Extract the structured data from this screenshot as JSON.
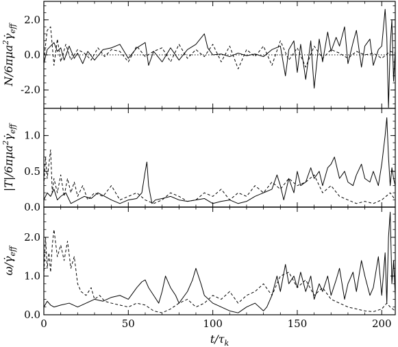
{
  "chart_data": [
    {
      "type": "line",
      "title": "",
      "ylabel": "N/6πμa²γ̇eff",
      "xlabel": "",
      "xlim": [
        0,
        208
      ],
      "ylim": [
        -3.05,
        3.05
      ],
      "yticks": [
        -2.0,
        0.0,
        2.0
      ],
      "ytick_labels": [
        "-2.0",
        "0.0",
        "2.0"
      ],
      "xtick_labels": [],
      "reference_line": {
        "y": 0.0,
        "style": "dotted"
      },
      "series": [
        {
          "style": "solid",
          "x": [
            0,
            2,
            4,
            6,
            8,
            10,
            12,
            15,
            18,
            20,
            23,
            26,
            30,
            35,
            40,
            45,
            50,
            55,
            60,
            62,
            65,
            70,
            75,
            80,
            85,
            90,
            95,
            97,
            100,
            105,
            110,
            115,
            120,
            125,
            130,
            135,
            140,
            143,
            145,
            148,
            150,
            152,
            155,
            158,
            160,
            163,
            165,
            168,
            170,
            173,
            175,
            178,
            180,
            183,
            185,
            188,
            190,
            193,
            195,
            198,
            200,
            202,
            203,
            204,
            205,
            206,
            207,
            208
          ],
          "y": [
            -0.5,
            0.3,
            0.5,
            0.7,
            0.2,
            0.4,
            -0.3,
            0.5,
            -0.2,
            0.1,
            -0.5,
            0.2,
            -0.3,
            0.3,
            0.4,
            0.6,
            -0.2,
            0.4,
            0.7,
            -0.6,
            0.2,
            -0.4,
            0.4,
            -0.3,
            0.3,
            0.6,
            1.2,
            0.4,
            0.0,
            0.05,
            -0.1,
            0.1,
            -0.05,
            0.05,
            -0.1,
            0.3,
            0.5,
            -1.2,
            0.3,
            0.8,
            -1.0,
            0.6,
            -1.4,
            0.8,
            -1.9,
            0.9,
            -0.4,
            1.3,
            0.2,
            1.0,
            0.5,
            1.6,
            -0.5,
            0.7,
            1.4,
            -0.7,
            0.5,
            0.9,
            -0.6,
            0.3,
            0.5,
            2.6,
            1.0,
            -3.0,
            0.5,
            2.0,
            -1.5,
            0.3
          ]
        },
        {
          "style": "dashed",
          "x": [
            0,
            2,
            4,
            6,
            8,
            10,
            13,
            16,
            20,
            24,
            28,
            32,
            36,
            40,
            45,
            50,
            55,
            60,
            65,
            70,
            75,
            80,
            85,
            90,
            95,
            100,
            105,
            110,
            115,
            120,
            125,
            130,
            135,
            140,
            145,
            150,
            155,
            160,
            165,
            170,
            175,
            180,
            185,
            190,
            195,
            200,
            205,
            208
          ],
          "y": [
            -0.3,
            1.4,
            1.6,
            -0.6,
            0.9,
            -0.4,
            0.6,
            -0.3,
            0.3,
            0.1,
            -0.3,
            0.4,
            -0.1,
            0.3,
            0.2,
            -0.4,
            0.5,
            -0.1,
            0.2,
            0.4,
            -0.4,
            0.6,
            -0.2,
            0.3,
            -0.1,
            0.6,
            -0.4,
            0.5,
            -0.8,
            0.3,
            -0.1,
            0.5,
            -0.6,
            0.8,
            -0.3,
            0.4,
            -0.7,
            0.5,
            -0.2,
            0.3,
            0.1,
            -0.2,
            0.2,
            0.0,
            0.1,
            -0.2,
            0.2,
            0.1
          ]
        }
      ]
    },
    {
      "type": "line",
      "title": "",
      "ylabel": "|T|/6πμa²γ̇eff",
      "xlabel": "",
      "xlim": [
        0,
        208
      ],
      "ylim": [
        0.0,
        1.38
      ],
      "yticks": [
        0.0,
        0.5,
        1.0
      ],
      "ytick_labels": [
        "0.0",
        "0.5",
        "1.0"
      ],
      "xtick_labels": [],
      "series": [
        {
          "style": "solid",
          "x": [
            0,
            2,
            4,
            6,
            8,
            10,
            13,
            16,
            20,
            24,
            28,
            32,
            36,
            40,
            45,
            50,
            55,
            58,
            60,
            61,
            62,
            64,
            66,
            70,
            75,
            80,
            85,
            90,
            95,
            100,
            105,
            110,
            115,
            120,
            125,
            130,
            135,
            138,
            140,
            142,
            145,
            148,
            150,
            152,
            155,
            158,
            160,
            163,
            165,
            168,
            170,
            172,
            175,
            178,
            180,
            183,
            185,
            188,
            190,
            193,
            195,
            198,
            200,
            202,
            203,
            204,
            205,
            206,
            207,
            208
          ],
          "y": [
            0.1,
            0.2,
            0.15,
            0.25,
            0.1,
            0.15,
            0.2,
            0.05,
            0.1,
            0.15,
            0.12,
            0.2,
            0.15,
            0.1,
            0.05,
            0.1,
            0.12,
            0.2,
            0.5,
            0.63,
            0.3,
            0.05,
            0.1,
            0.12,
            0.15,
            0.1,
            0.08,
            0.1,
            0.12,
            0.05,
            0.08,
            0.1,
            0.05,
            0.08,
            0.15,
            0.2,
            0.25,
            0.45,
            0.3,
            0.1,
            0.4,
            0.2,
            0.5,
            0.3,
            0.35,
            0.55,
            0.4,
            0.5,
            0.3,
            0.55,
            0.6,
            0.7,
            0.4,
            0.5,
            0.35,
            0.3,
            0.45,
            0.6,
            0.4,
            0.35,
            0.5,
            0.3,
            0.6,
            1.0,
            1.25,
            0.7,
            0.3,
            0.55,
            0.4,
            0.3
          ]
        },
        {
          "style": "dashed",
          "x": [
            0,
            1,
            2,
            3,
            4,
            5,
            6,
            8,
            10,
            12,
            14,
            16,
            18,
            20,
            23,
            26,
            30,
            35,
            40,
            45,
            50,
            55,
            60,
            65,
            70,
            75,
            80,
            85,
            90,
            95,
            100,
            105,
            110,
            115,
            120,
            125,
            130,
            135,
            140,
            145,
            150,
            155,
            160,
            165,
            170,
            175,
            180,
            185,
            190,
            195,
            200,
            205,
            208
          ],
          "y": [
            0.3,
            0.7,
            0.4,
            0.6,
            0.8,
            0.2,
            0.4,
            0.2,
            0.45,
            0.15,
            0.4,
            0.2,
            0.35,
            0.15,
            0.3,
            0.1,
            0.2,
            0.15,
            0.3,
            0.1,
            0.15,
            0.2,
            0.1,
            0.05,
            0.1,
            0.2,
            0.15,
            0.08,
            0.1,
            0.2,
            0.15,
            0.25,
            0.1,
            0.2,
            0.15,
            0.3,
            0.2,
            0.35,
            0.25,
            0.4,
            0.3,
            0.35,
            0.45,
            0.2,
            0.3,
            0.15,
            0.1,
            0.05,
            0.08,
            0.05,
            0.1,
            0.2,
            0.1
          ]
        }
      ]
    },
    {
      "type": "line",
      "title": "",
      "ylabel": "ω/γ̇eff",
      "xlabel": "t/τk",
      "xlim": [
        0,
        208
      ],
      "ylim": [
        0.0,
        2.78
      ],
      "yticks": [
        0.0,
        1.0,
        2.0
      ],
      "ytick_labels": [
        "0.0",
        "1.0",
        "2.0"
      ],
      "xticks": [
        0,
        50,
        100,
        150,
        200
      ],
      "xtick_labels": [
        "0",
        "50",
        "100",
        "150",
        "200"
      ],
      "series": [
        {
          "style": "solid",
          "x": [
            0,
            2,
            4,
            6,
            10,
            15,
            20,
            25,
            30,
            35,
            40,
            45,
            50,
            55,
            58,
            60,
            62,
            65,
            68,
            70,
            72,
            75,
            78,
            80,
            85,
            88,
            90,
            93,
            95,
            100,
            105,
            110,
            115,
            120,
            125,
            130,
            132,
            135,
            138,
            140,
            143,
            145,
            148,
            150,
            152,
            155,
            158,
            160,
            163,
            165,
            168,
            170,
            173,
            175,
            178,
            180,
            183,
            185,
            188,
            190,
            193,
            195,
            198,
            200,
            202,
            203,
            204,
            205,
            206,
            207,
            208
          ],
          "y": [
            0.2,
            0.35,
            0.25,
            0.2,
            0.25,
            0.3,
            0.2,
            0.3,
            0.4,
            0.35,
            0.45,
            0.5,
            0.4,
            0.7,
            0.85,
            0.9,
            0.7,
            0.5,
            0.3,
            0.6,
            1.0,
            0.7,
            0.5,
            0.3,
            0.6,
            0.9,
            1.2,
            0.8,
            0.5,
            0.3,
            0.2,
            0.1,
            0.05,
            0.2,
            0.3,
            0.1,
            0.2,
            0.5,
            1.0,
            0.6,
            1.3,
            0.8,
            1.0,
            0.7,
            1.1,
            0.6,
            1.0,
            0.4,
            0.8,
            0.6,
            1.0,
            0.5,
            0.9,
            1.2,
            0.4,
            0.8,
            1.1,
            0.6,
            1.4,
            1.0,
            0.5,
            0.7,
            1.5,
            0.5,
            1.6,
            0.3,
            2.0,
            2.65,
            0.8,
            1.4,
            0.5
          ]
        },
        {
          "style": "dashed",
          "x": [
            0,
            1,
            2,
            3,
            4,
            5,
            6,
            8,
            10,
            12,
            14,
            16,
            18,
            20,
            22,
            25,
            28,
            30,
            33,
            36,
            40,
            45,
            50,
            55,
            60,
            65,
            70,
            75,
            80,
            85,
            90,
            95,
            100,
            105,
            110,
            115,
            120,
            125,
            130,
            135,
            140,
            145,
            150,
            155,
            160,
            165,
            170,
            175,
            180,
            185,
            190,
            195,
            200,
            203,
            205,
            208
          ],
          "y": [
            1.0,
            2.0,
            1.2,
            1.6,
            1.1,
            1.8,
            2.2,
            1.5,
            1.8,
            1.4,
            1.9,
            1.2,
            1.5,
            0.8,
            0.6,
            0.5,
            0.7,
            0.4,
            0.5,
            0.35,
            0.3,
            0.25,
            0.2,
            0.3,
            0.25,
            0.1,
            0.05,
            0.15,
            0.3,
            0.4,
            0.2,
            0.3,
            0.5,
            0.4,
            0.6,
            0.3,
            0.5,
            0.6,
            0.8,
            0.5,
            1.0,
            1.1,
            0.7,
            0.9,
            0.5,
            0.7,
            0.4,
            0.3,
            0.2,
            0.15,
            0.1,
            0.08,
            0.15,
            0.3,
            0.2,
            0.1
          ]
        }
      ]
    }
  ]
}
